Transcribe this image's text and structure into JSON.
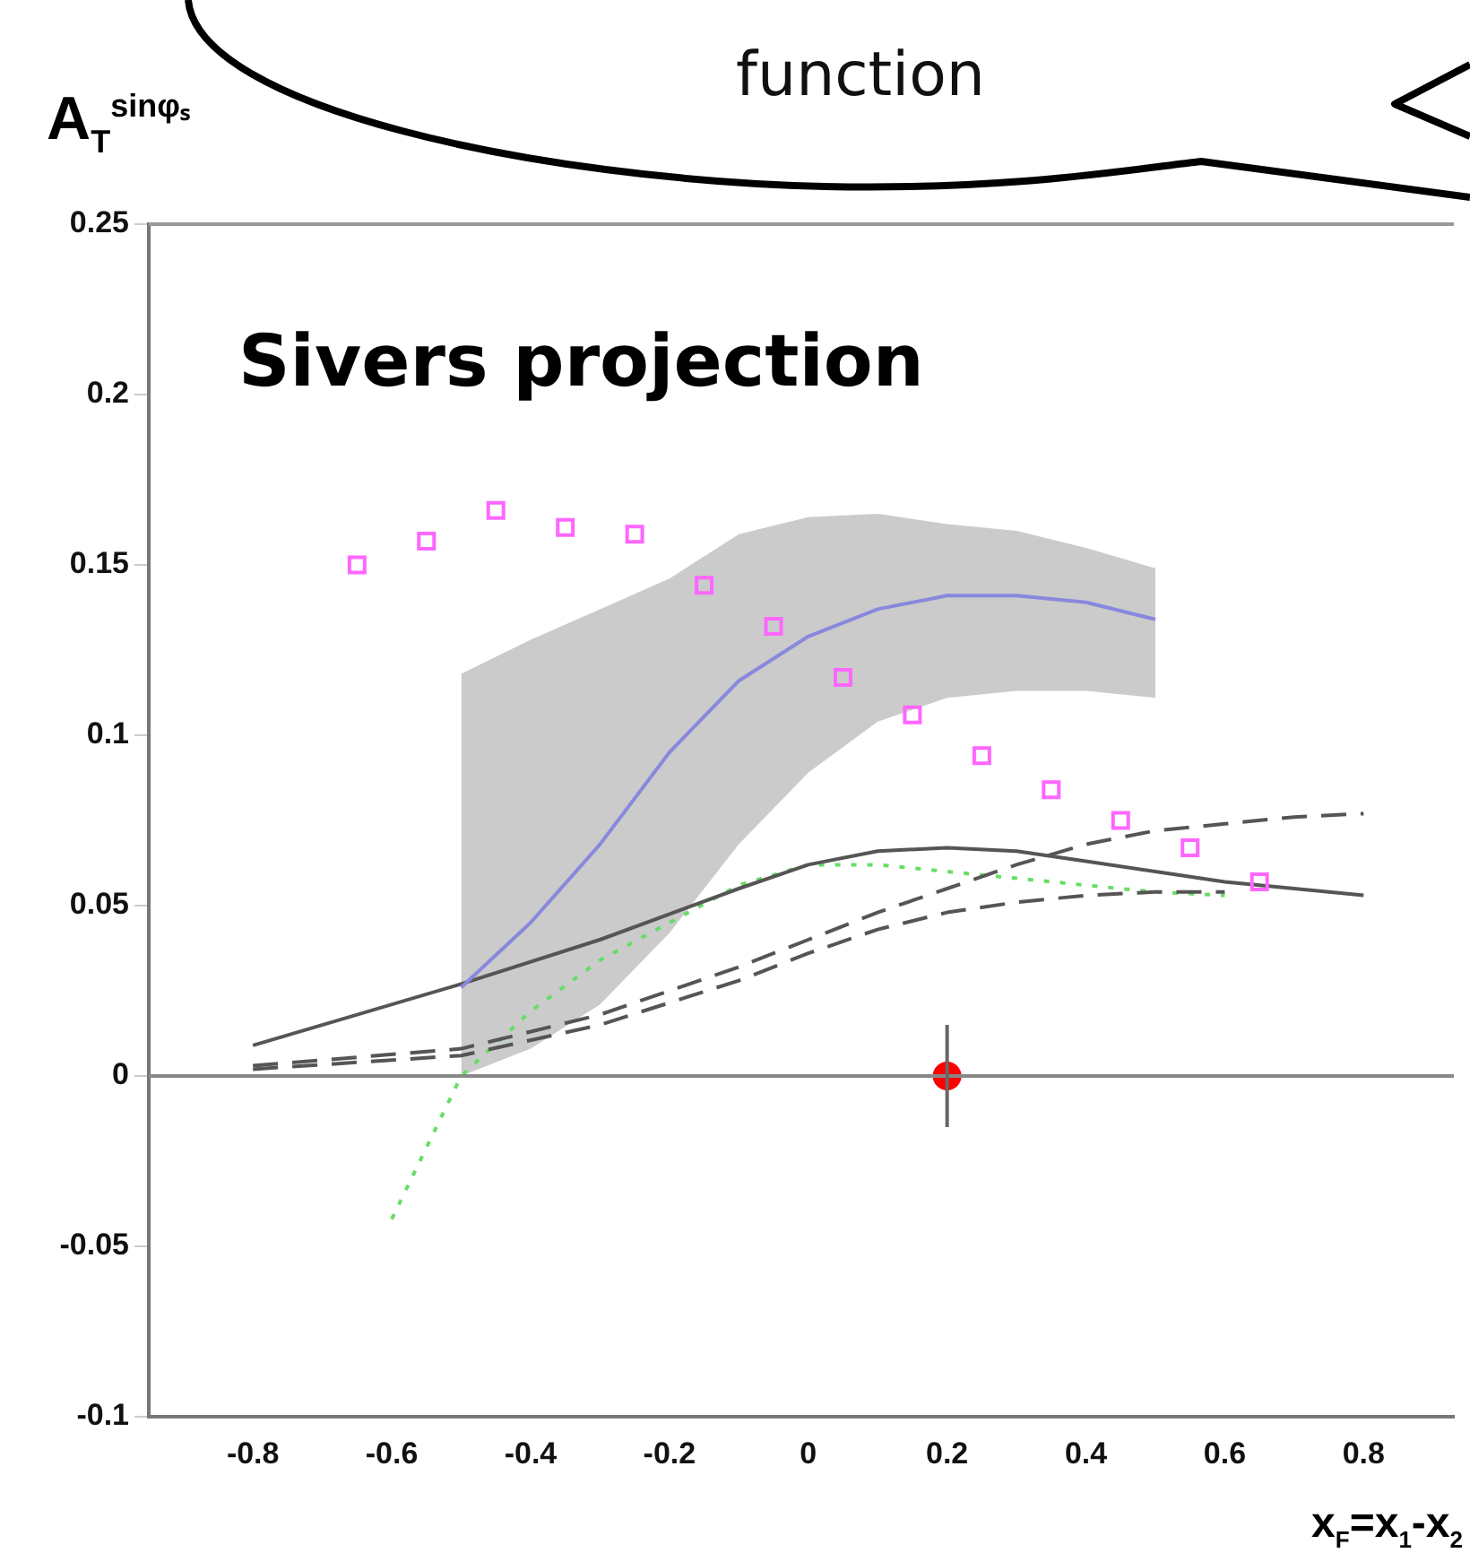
{
  "chart_data": {
    "type": "line",
    "title": "Sivers projection",
    "xlabel": "x$_{F}$=x$_{1}$-x$_{2}$",
    "ylabel": "A$_{T}$$^{sinφₛ}$",
    "annotations": [
      "function"
    ],
    "xlim": [
      -0.95,
      0.93
    ],
    "xticks": [
      -0.8,
      -0.6,
      -0.4,
      -0.2,
      0,
      0.2,
      0.4,
      0.6,
      0.8
    ],
    "ylim": [
      -0.1,
      0.25
    ],
    "yticks": [
      -0.1,
      -0.05,
      0,
      0.05,
      0.1,
      0.15,
      0.2,
      0.25
    ],
    "grid": false,
    "legend": false,
    "ref_lines": [
      {
        "axis": "y",
        "value": 0,
        "color": "#888888"
      }
    ],
    "series": [
      {
        "color": "#8888dd",
        "line_style": "solid",
        "marker": "none",
        "x": [
          -0.5,
          -0.4,
          -0.3,
          -0.2,
          -0.1,
          0,
          0.1,
          0.2,
          0.3,
          0.4,
          0.5
        ],
        "values": [
          0.026,
          0.045,
          0.068,
          0.095,
          0.116,
          0.129,
          0.137,
          0.141,
          0.141,
          0.139,
          0.134
        ],
        "lower": [
          0,
          0.008,
          0.021,
          0.042,
          0.068,
          0.089,
          0.104,
          0.111,
          0.113,
          0.113,
          0.111
        ],
        "upper": [
          0.118,
          0.128,
          0.137,
          0.146,
          0.159,
          0.164,
          0.165,
          0.162,
          0.16,
          0.155,
          0.149
        ]
      },
      {
        "color": "#555555",
        "line_style": "solid",
        "marker": "none",
        "x": [
          -0.8,
          -0.5,
          -0.3,
          -0.1,
          0,
          0.1,
          0.2,
          0.3,
          0.4,
          0.5,
          0.6,
          0.7,
          0.8
        ],
        "values": [
          0.009,
          0.027,
          0.04,
          0.055,
          0.062,
          0.066,
          0.067,
          0.066,
          0.063,
          0.06,
          0.057,
          0.055,
          0.053
        ]
      },
      {
        "color": "#555555",
        "line_style": "dashed",
        "marker": "none",
        "x": [
          -0.8,
          -0.5,
          -0.3,
          -0.1,
          0,
          0.1,
          0.2,
          0.3,
          0.4,
          0.5,
          0.6,
          0.7,
          0.8
        ],
        "values": [
          0.003,
          0.008,
          0.018,
          0.032,
          0.04,
          0.048,
          0.055,
          0.062,
          0.068,
          0.072,
          0.074,
          0.076,
          0.077
        ]
      },
      {
        "color": "#555555",
        "line_style": "dashed",
        "marker": "none",
        "x": [
          -0.8,
          -0.5,
          -0.3,
          -0.1,
          0,
          0.1,
          0.2,
          0.3,
          0.4,
          0.5,
          0.6
        ],
        "values": [
          0.002,
          0.006,
          0.015,
          0.028,
          0.036,
          0.043,
          0.048,
          0.051,
          0.053,
          0.054,
          0.054
        ]
      },
      {
        "color": "#66dd66",
        "line_style": "dotted",
        "marker": "none",
        "x": [
          -0.6,
          -0.5,
          -0.4,
          -0.3,
          -0.2,
          -0.1,
          0,
          0.1,
          0.2,
          0.3,
          0.4,
          0.5,
          0.6
        ],
        "values": [
          -0.042,
          0,
          0.019,
          0.034,
          0.045,
          0.056,
          0.062,
          0.062,
          0.06,
          0.058,
          0.056,
          0.054,
          0.053
        ]
      },
      {
        "type": "scatter",
        "color": "#ff66ff",
        "marker": "square",
        "x": [
          -0.65,
          -0.55,
          -0.45,
          -0.35,
          -0.25,
          -0.15,
          -0.05,
          0.05,
          0.15,
          0.25,
          0.35,
          0.45,
          0.55,
          0.65
        ],
        "values": [
          0.15,
          0.157,
          0.166,
          0.161,
          0.159,
          0.144,
          0.132,
          0.117,
          0.106,
          0.094,
          0.084,
          0.075,
          0.067,
          0.057
        ]
      },
      {
        "type": "scatter",
        "color": "#ff0000",
        "marker": "circle",
        "x": [
          0.2
        ],
        "values": [
          0
        ],
        "errors": [
          0.015
        ]
      }
    ]
  }
}
